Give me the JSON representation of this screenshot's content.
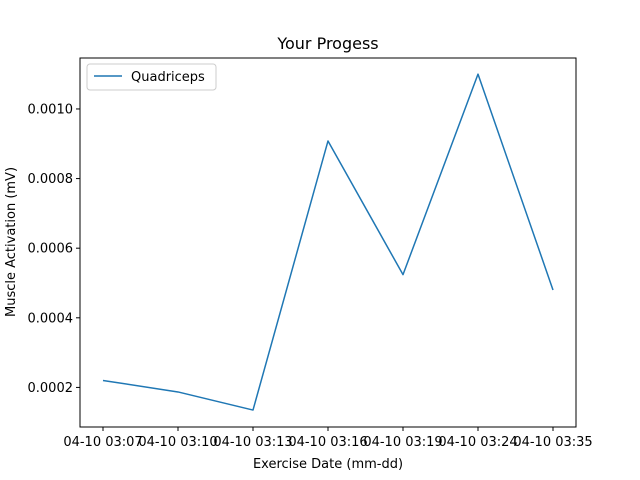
{
  "chart_data": {
    "type": "line",
    "title": "Your Progess",
    "xlabel": "Exercise Date (mm-dd)",
    "ylabel": "Muscle Activation (mV)",
    "x_ticks": [
      "04-10 03:07",
      "04-10 03:10",
      "04-10 03:13",
      "04-10 03:16",
      "04-10 03:19",
      "04-10 03:24",
      "04-10 03:35"
    ],
    "ylim": [
      8.63e-05,
      0.0011464
    ],
    "y_ticks": [
      0.0002,
      0.0004,
      0.0006,
      0.0008,
      0.001
    ],
    "y_tick_labels": [
      "0.0002",
      "0.0004",
      "0.0006",
      "0.0008",
      "0.0010"
    ],
    "grid": false,
    "legend": "upper-left",
    "series": [
      {
        "name": "Quadriceps",
        "color": "#1f77b4",
        "values": [
          0.00022,
          0.000187,
          0.000135,
          0.000908,
          0.000524,
          0.0011,
          0.00048
        ]
      }
    ]
  }
}
